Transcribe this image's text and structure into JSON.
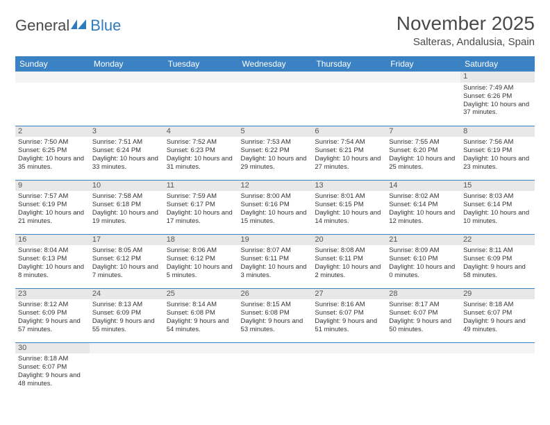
{
  "logo": {
    "text1": "General",
    "text2": "Blue"
  },
  "title": "November 2025",
  "location": "Salteras, Andalusia, Spain",
  "colors": {
    "header_bg": "#3b82c4",
    "header_text": "#ffffff",
    "daynum_bg": "#e8e8e8",
    "border": "#3b82c4",
    "logo_blue": "#2f7bbf",
    "text": "#333333"
  },
  "day_headers": [
    "Sunday",
    "Monday",
    "Tuesday",
    "Wednesday",
    "Thursday",
    "Friday",
    "Saturday"
  ],
  "weeks": [
    [
      {
        "empty": true
      },
      {
        "empty": true
      },
      {
        "empty": true
      },
      {
        "empty": true
      },
      {
        "empty": true
      },
      {
        "empty": true
      },
      {
        "n": "1",
        "sunrise": "7:49 AM",
        "sunset": "6:26 PM",
        "day_h": "10",
        "day_m": "37"
      }
    ],
    [
      {
        "n": "2",
        "sunrise": "7:50 AM",
        "sunset": "6:25 PM",
        "day_h": "10",
        "day_m": "35"
      },
      {
        "n": "3",
        "sunrise": "7:51 AM",
        "sunset": "6:24 PM",
        "day_h": "10",
        "day_m": "33"
      },
      {
        "n": "4",
        "sunrise": "7:52 AM",
        "sunset": "6:23 PM",
        "day_h": "10",
        "day_m": "31"
      },
      {
        "n": "5",
        "sunrise": "7:53 AM",
        "sunset": "6:22 PM",
        "day_h": "10",
        "day_m": "29"
      },
      {
        "n": "6",
        "sunrise": "7:54 AM",
        "sunset": "6:21 PM",
        "day_h": "10",
        "day_m": "27"
      },
      {
        "n": "7",
        "sunrise": "7:55 AM",
        "sunset": "6:20 PM",
        "day_h": "10",
        "day_m": "25"
      },
      {
        "n": "8",
        "sunrise": "7:56 AM",
        "sunset": "6:19 PM",
        "day_h": "10",
        "day_m": "23"
      }
    ],
    [
      {
        "n": "9",
        "sunrise": "7:57 AM",
        "sunset": "6:19 PM",
        "day_h": "10",
        "day_m": "21"
      },
      {
        "n": "10",
        "sunrise": "7:58 AM",
        "sunset": "6:18 PM",
        "day_h": "10",
        "day_m": "19"
      },
      {
        "n": "11",
        "sunrise": "7:59 AM",
        "sunset": "6:17 PM",
        "day_h": "10",
        "day_m": "17"
      },
      {
        "n": "12",
        "sunrise": "8:00 AM",
        "sunset": "6:16 PM",
        "day_h": "10",
        "day_m": "15"
      },
      {
        "n": "13",
        "sunrise": "8:01 AM",
        "sunset": "6:15 PM",
        "day_h": "10",
        "day_m": "14"
      },
      {
        "n": "14",
        "sunrise": "8:02 AM",
        "sunset": "6:14 PM",
        "day_h": "10",
        "day_m": "12"
      },
      {
        "n": "15",
        "sunrise": "8:03 AM",
        "sunset": "6:14 PM",
        "day_h": "10",
        "day_m": "10"
      }
    ],
    [
      {
        "n": "16",
        "sunrise": "8:04 AM",
        "sunset": "6:13 PM",
        "day_h": "10",
        "day_m": "8"
      },
      {
        "n": "17",
        "sunrise": "8:05 AM",
        "sunset": "6:12 PM",
        "day_h": "10",
        "day_m": "7"
      },
      {
        "n": "18",
        "sunrise": "8:06 AM",
        "sunset": "6:12 PM",
        "day_h": "10",
        "day_m": "5"
      },
      {
        "n": "19",
        "sunrise": "8:07 AM",
        "sunset": "6:11 PM",
        "day_h": "10",
        "day_m": "3"
      },
      {
        "n": "20",
        "sunrise": "8:08 AM",
        "sunset": "6:11 PM",
        "day_h": "10",
        "day_m": "2"
      },
      {
        "n": "21",
        "sunrise": "8:09 AM",
        "sunset": "6:10 PM",
        "day_h": "10",
        "day_m": "0"
      },
      {
        "n": "22",
        "sunrise": "8:11 AM",
        "sunset": "6:09 PM",
        "day_h": "9",
        "day_m": "58"
      }
    ],
    [
      {
        "n": "23",
        "sunrise": "8:12 AM",
        "sunset": "6:09 PM",
        "day_h": "9",
        "day_m": "57"
      },
      {
        "n": "24",
        "sunrise": "8:13 AM",
        "sunset": "6:09 PM",
        "day_h": "9",
        "day_m": "55"
      },
      {
        "n": "25",
        "sunrise": "8:14 AM",
        "sunset": "6:08 PM",
        "day_h": "9",
        "day_m": "54"
      },
      {
        "n": "26",
        "sunrise": "8:15 AM",
        "sunset": "6:08 PM",
        "day_h": "9",
        "day_m": "53"
      },
      {
        "n": "27",
        "sunrise": "8:16 AM",
        "sunset": "6:07 PM",
        "day_h": "9",
        "day_m": "51"
      },
      {
        "n": "28",
        "sunrise": "8:17 AM",
        "sunset": "6:07 PM",
        "day_h": "9",
        "day_m": "50"
      },
      {
        "n": "29",
        "sunrise": "8:18 AM",
        "sunset": "6:07 PM",
        "day_h": "9",
        "day_m": "49"
      }
    ],
    [
      {
        "n": "30",
        "sunrise": "8:18 AM",
        "sunset": "6:07 PM",
        "day_h": "9",
        "day_m": "48"
      },
      {
        "empty": true
      },
      {
        "empty": true
      },
      {
        "empty": true
      },
      {
        "empty": true
      },
      {
        "empty": true
      },
      {
        "empty": true
      }
    ]
  ],
  "labels": {
    "sunrise": "Sunrise:",
    "sunset": "Sunset:",
    "daylight_prefix": "Daylight:",
    "hours_word": "hours",
    "and_word": "and",
    "minutes_word": "minutes."
  }
}
